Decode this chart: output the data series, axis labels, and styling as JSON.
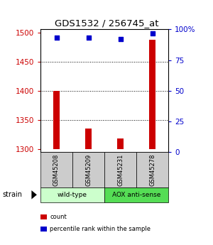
{
  "title": "GDS1532 / 256745_at",
  "samples": [
    "GSM45208",
    "GSM45209",
    "GSM45231",
    "GSM45278"
  ],
  "count_values": [
    1400,
    1335,
    1318,
    1487
  ],
  "percentile_values": [
    93,
    93,
    92,
    97
  ],
  "ylim_left": [
    1295,
    1505
  ],
  "ylim_right": [
    0,
    100
  ],
  "yticks_left": [
    1300,
    1350,
    1400,
    1450,
    1500
  ],
  "yticks_right": [
    0,
    25,
    50,
    75,
    100
  ],
  "ytick_labels_right": [
    "0",
    "25",
    "50",
    "75",
    "100%"
  ],
  "bar_color": "#cc0000",
  "dot_color": "#0000cc",
  "groups": [
    {
      "label": "wild-type",
      "samples": [
        0,
        1
      ],
      "color": "#ccffcc"
    },
    {
      "label": "AOX anti-sense",
      "samples": [
        2,
        3
      ],
      "color": "#55dd55"
    }
  ],
  "strain_label": "strain",
  "legend_items": [
    {
      "color": "#cc0000",
      "label": "count"
    },
    {
      "color": "#0000cc",
      "label": "percentile rank within the sample"
    }
  ],
  "bar_width": 0.18,
  "dot_size": 18,
  "tick_label_color_left": "#cc0000",
  "tick_label_color_right": "#0000cc",
  "background_color": "#ffffff",
  "plot_bg_color": "#ffffff",
  "sample_box_color": "#cccccc",
  "baseline": 1300
}
